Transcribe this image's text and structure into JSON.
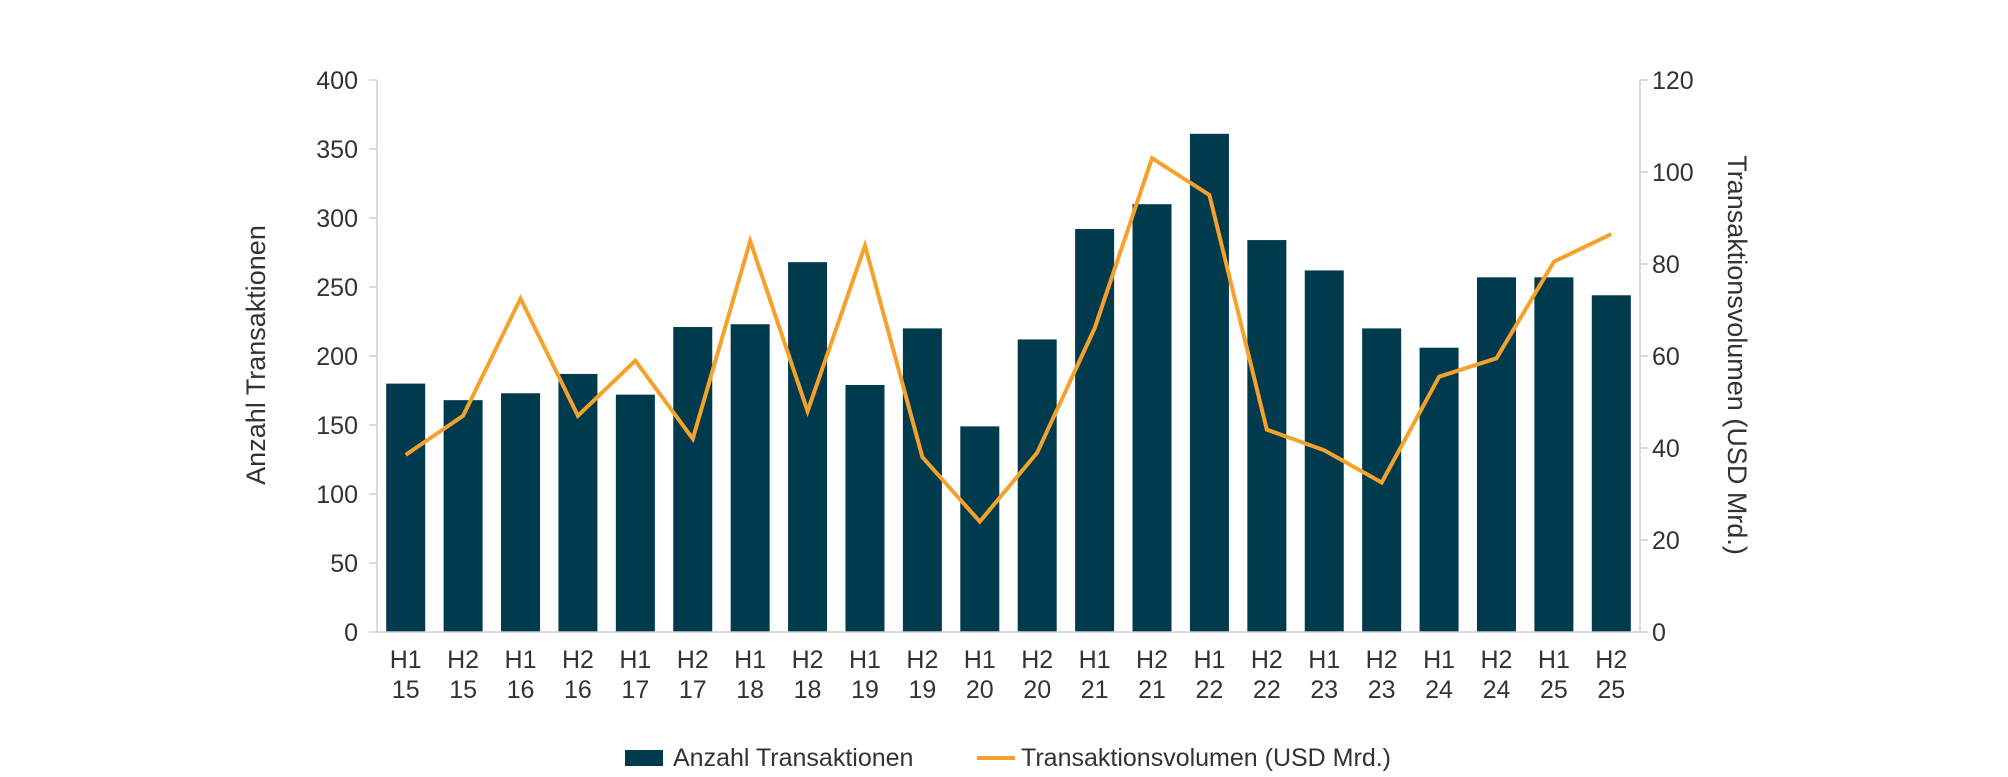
{
  "chart_data": {
    "type": "bar",
    "categories": [
      [
        "H1",
        "15"
      ],
      [
        "H2",
        "15"
      ],
      [
        "H1",
        "16"
      ],
      [
        "H2",
        "16"
      ],
      [
        "H1",
        "17"
      ],
      [
        "H2",
        "17"
      ],
      [
        "H1",
        "18"
      ],
      [
        "H2",
        "18"
      ],
      [
        "H1",
        "19"
      ],
      [
        "H2",
        "19"
      ],
      [
        "H1",
        "20"
      ],
      [
        "H2",
        "20"
      ],
      [
        "H1",
        "21"
      ],
      [
        "H2",
        "21"
      ],
      [
        "H1",
        "22"
      ],
      [
        "H2",
        "22"
      ],
      [
        "H1",
        "23"
      ],
      [
        "H2",
        "23"
      ],
      [
        "H1",
        "24"
      ],
      [
        "H2",
        "24"
      ],
      [
        "H1",
        "25"
      ],
      [
        "H2",
        "25"
      ]
    ],
    "series": [
      {
        "name": "Anzahl Transaktionen",
        "type": "bar",
        "axis": "left",
        "color": "#003a4d",
        "values": [
          180,
          168,
          173,
          187,
          172,
          221,
          223,
          268,
          179,
          220,
          149,
          212,
          292,
          310,
          361,
          284,
          262,
          220,
          206,
          257,
          257,
          244
        ]
      },
      {
        "name": "Transaktionsvolumen (USD Mrd.)",
        "type": "line",
        "axis": "right",
        "color": "#f5a22c",
        "values": [
          38.5,
          47,
          72.5,
          47,
          59,
          42,
          85,
          48,
          84,
          38,
          24,
          39,
          66,
          103,
          95,
          44,
          39.5,
          32.5,
          55.5,
          59.5,
          80.5,
          86.5
        ]
      }
    ],
    "yleft": {
      "label": "Anzahl Transaktionen",
      "range": [
        0,
        400
      ],
      "ticks": [
        0,
        50,
        100,
        150,
        200,
        250,
        300,
        350,
        400
      ]
    },
    "yright": {
      "label": "Transaktionsvolumen (USD Mrd.)",
      "range": [
        0,
        120
      ],
      "ticks": [
        0,
        20,
        40,
        60,
        80,
        100,
        120
      ]
    },
    "grid": false,
    "legend_position": "bottom-center"
  }
}
